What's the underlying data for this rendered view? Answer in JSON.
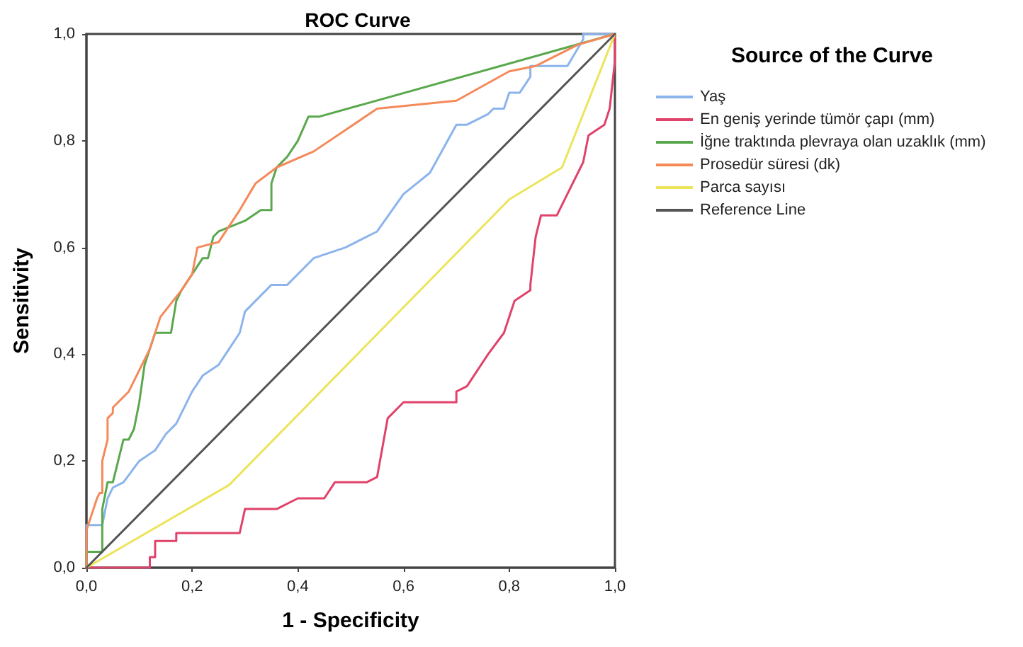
{
  "chart_data": {
    "type": "line",
    "title": "ROC Curve",
    "xlabel": "1 - Specificity",
    "ylabel": "Sensitivity",
    "legend_title": "Source of the Curve",
    "legend": "right",
    "grid": false,
    "marker": "none",
    "line_style": "solid",
    "xlim": [
      0,
      1
    ],
    "ylim": [
      0,
      1
    ],
    "xticks": [
      {
        "value": 0,
        "label": "0,0"
      },
      {
        "value": 0.2,
        "label": "0,2"
      },
      {
        "value": 0.4,
        "label": "0,4"
      },
      {
        "value": 0.6,
        "label": "0,6"
      },
      {
        "value": 0.8,
        "label": "0,8"
      },
      {
        "value": 1,
        "label": "1,0"
      }
    ],
    "yticks": [
      {
        "value": 0,
        "label": "0,0"
      },
      {
        "value": 0.2,
        "label": "0,2"
      },
      {
        "value": 0.4,
        "label": "0,4"
      },
      {
        "value": 0.6,
        "label": "0,6"
      },
      {
        "value": 0.8,
        "label": "0,8"
      },
      {
        "value": 1,
        "label": "1,0"
      }
    ],
    "series": [
      {
        "name": "Yaş",
        "color": "#8cb4ec",
        "x": [
          0,
          0,
          0.03,
          0.04,
          0.05,
          0.07,
          0.1,
          0.13,
          0.15,
          0.17,
          0.2,
          0.22,
          0.25,
          0.27,
          0.29,
          0.3,
          0.35,
          0.38,
          0.43,
          0.49,
          0.55,
          0.6,
          0.65,
          0.7,
          0.72,
          0.76,
          0.77,
          0.79,
          0.8,
          0.82,
          0.84,
          0.84,
          0.91,
          0.94,
          0.94,
          1
        ],
        "values": [
          0,
          0.08,
          0.08,
          0.13,
          0.15,
          0.16,
          0.2,
          0.22,
          0.25,
          0.27,
          0.33,
          0.36,
          0.38,
          0.41,
          0.44,
          0.48,
          0.53,
          0.53,
          0.58,
          0.6,
          0.63,
          0.7,
          0.74,
          0.83,
          0.83,
          0.85,
          0.86,
          0.86,
          0.89,
          0.89,
          0.92,
          0.94,
          0.94,
          0.99,
          1,
          1
        ]
      },
      {
        "name": "En geniş yerinde tümör çapı (mm)",
        "color": "#e0426a",
        "x": [
          0,
          0.12,
          0.12,
          0.13,
          0.13,
          0.17,
          0.17,
          0.29,
          0.3,
          0.36,
          0.4,
          0.45,
          0.47,
          0.53,
          0.55,
          0.57,
          0.6,
          0.7,
          0.7,
          0.72,
          0.76,
          0.79,
          0.81,
          0.84,
          0.84,
          0.85,
          0.86,
          0.89,
          0.91,
          0.94,
          0.95,
          0.98,
          0.99,
          1,
          1
        ],
        "values": [
          0,
          0,
          0.02,
          0.02,
          0.05,
          0.05,
          0.065,
          0.065,
          0.11,
          0.11,
          0.13,
          0.13,
          0.16,
          0.16,
          0.17,
          0.28,
          0.31,
          0.31,
          0.33,
          0.34,
          0.4,
          0.44,
          0.5,
          0.52,
          0.53,
          0.62,
          0.66,
          0.66,
          0.7,
          0.76,
          0.81,
          0.83,
          0.86,
          0.95,
          1
        ]
      },
      {
        "name": "İğne traktında plevraya olan uzaklık (mm)",
        "color": "#5aa84d",
        "x": [
          0,
          0,
          0.03,
          0.03,
          0.04,
          0.05,
          0.06,
          0.07,
          0.08,
          0.09,
          0.1,
          0.11,
          0.12,
          0.13,
          0.16,
          0.17,
          0.18,
          0.2,
          0.22,
          0.23,
          0.24,
          0.25,
          0.3,
          0.33,
          0.35,
          0.35,
          0.36,
          0.38,
          0.4,
          0.42,
          0.44,
          1
        ],
        "values": [
          0,
          0.03,
          0.03,
          0.11,
          0.16,
          0.16,
          0.2,
          0.24,
          0.24,
          0.26,
          0.31,
          0.38,
          0.41,
          0.44,
          0.44,
          0.5,
          0.52,
          0.55,
          0.58,
          0.58,
          0.62,
          0.63,
          0.65,
          0.67,
          0.67,
          0.72,
          0.75,
          0.77,
          0.8,
          0.845,
          0.845,
          1
        ]
      },
      {
        "name": "Prosedür süresi (dk)",
        "color": "#f5895a",
        "x": [
          0,
          0,
          0.01,
          0.02,
          0.025,
          0.03,
          0.03,
          0.04,
          0.04,
          0.05,
          0.05,
          0.08,
          0.12,
          0.14,
          0.18,
          0.2,
          0.21,
          0.25,
          0.29,
          0.32,
          0.36,
          0.43,
          0.55,
          0.7,
          0.8,
          0.85,
          0.93,
          1
        ],
        "values": [
          0,
          0.07,
          0.1,
          0.13,
          0.14,
          0.14,
          0.2,
          0.24,
          0.28,
          0.29,
          0.3,
          0.33,
          0.41,
          0.47,
          0.52,
          0.55,
          0.6,
          0.61,
          0.67,
          0.72,
          0.75,
          0.78,
          0.86,
          0.875,
          0.93,
          0.94,
          0.98,
          1
        ]
      },
      {
        "name": "Parca sayısı",
        "color": "#ece45a",
        "x": [
          0,
          0.27,
          0.8,
          0.9,
          1
        ],
        "values": [
          0,
          0.155,
          0.69,
          0.75,
          1
        ]
      },
      {
        "name": "Reference Line",
        "color": "#555555",
        "x": [
          0,
          1
        ],
        "values": [
          0,
          1
        ]
      }
    ]
  }
}
